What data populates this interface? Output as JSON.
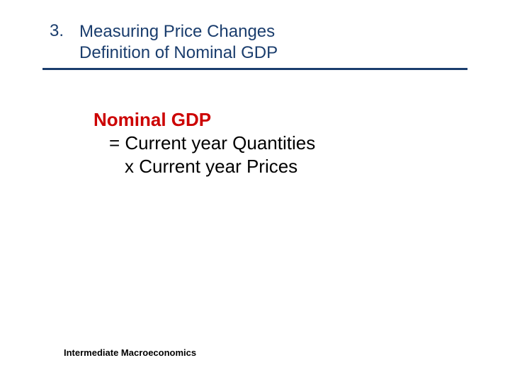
{
  "header": {
    "number": "3.",
    "line1": "Measuring Price Changes",
    "line2": "Definition of Nominal GDP",
    "text_color": "#1a3d6d",
    "border_color": "#1a3d6d",
    "font_size": 24
  },
  "definition": {
    "term": "Nominal GDP",
    "term_color": "#cc0000",
    "line1": "= Current year Quantities",
    "line2": "x Current year Prices",
    "body_color": "#000000",
    "font_size": 26
  },
  "footer": {
    "text": "Intermediate  Macroeconomics",
    "color": "#000000",
    "font_size": 13
  },
  "background_color": "#ffffff"
}
